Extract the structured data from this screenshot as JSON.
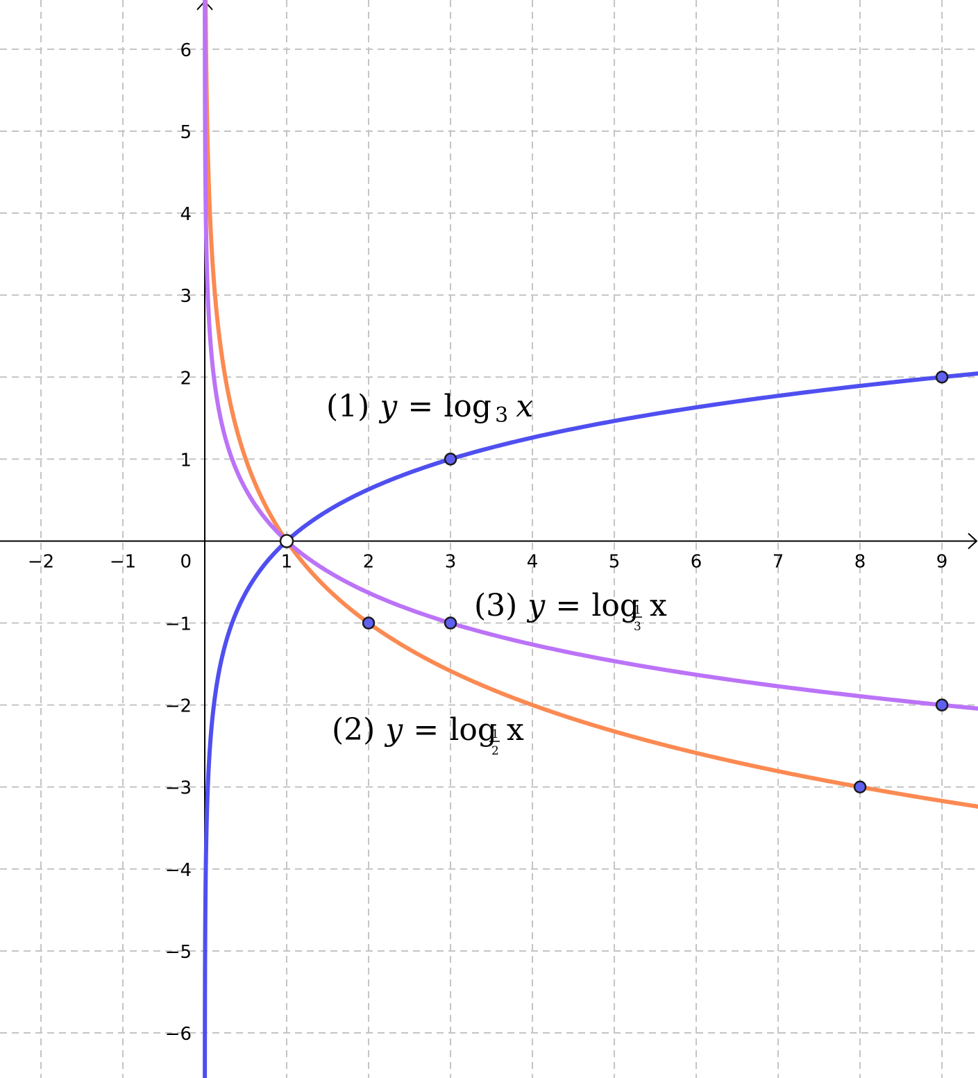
{
  "chart_data": {
    "type": "line",
    "xlim": [
      -2.5,
      9.44
    ],
    "ylim": [
      -6.55,
      6.6
    ],
    "grid": true,
    "x_ticks": [
      {
        "value": -2,
        "label": "−2"
      },
      {
        "value": -1,
        "label": "−1"
      },
      {
        "value": 1,
        "label": "1"
      },
      {
        "value": 2,
        "label": "2"
      },
      {
        "value": 3,
        "label": "3"
      },
      {
        "value": 4,
        "label": "4"
      },
      {
        "value": 5,
        "label": "5"
      },
      {
        "value": 6,
        "label": "6"
      },
      {
        "value": 7,
        "label": "7"
      },
      {
        "value": 8,
        "label": "8"
      },
      {
        "value": 9,
        "label": "9"
      }
    ],
    "y_ticks": [
      {
        "value": 6,
        "label": "6"
      },
      {
        "value": 5,
        "label": "5"
      },
      {
        "value": 4,
        "label": "4"
      },
      {
        "value": 3,
        "label": "3"
      },
      {
        "value": 2,
        "label": "2"
      },
      {
        "value": 1,
        "label": "1"
      },
      {
        "value": -1,
        "label": "−1"
      },
      {
        "value": -2,
        "label": "−2"
      },
      {
        "value": -3,
        "label": "−3"
      },
      {
        "value": -4,
        "label": "−4"
      },
      {
        "value": -5,
        "label": "−5"
      },
      {
        "value": -6,
        "label": "−6"
      }
    ],
    "origin_label": "0",
    "series": [
      {
        "name": "(1) y = log₃ x",
        "base": 3,
        "color": "#4f4ff0",
        "points": [
          [
            1,
            0
          ],
          [
            3,
            1
          ],
          [
            9,
            2
          ]
        ]
      },
      {
        "name": "(2) y = log½ x",
        "base": 0.5,
        "color": "#fb8a52",
        "points": [
          [
            1,
            0
          ],
          [
            2,
            -1
          ],
          [
            8,
            -3
          ]
        ]
      },
      {
        "name": "(3) y = log⅓ x",
        "base": 0.333333,
        "color": "#bb73f7",
        "points": [
          [
            1,
            0
          ],
          [
            3,
            -1
          ],
          [
            9,
            -2
          ]
        ]
      }
    ],
    "point_fill": "#6060f0",
    "annotations": [
      {
        "series": 0,
        "num": "(1)",
        "y": "y",
        "eq": "=",
        "fn": "log",
        "sub": "3",
        "x": "x"
      },
      {
        "series": 1,
        "num": "(2)",
        "y": "y",
        "eq": "=",
        "fn": "log",
        "sub_num": "1",
        "sub_den": "2",
        "x": "x"
      },
      {
        "series": 2,
        "num": "(3)",
        "y": "y",
        "eq": "=",
        "fn": "log",
        "sub_num": "1",
        "sub_den": "3",
        "x": "x"
      }
    ]
  }
}
